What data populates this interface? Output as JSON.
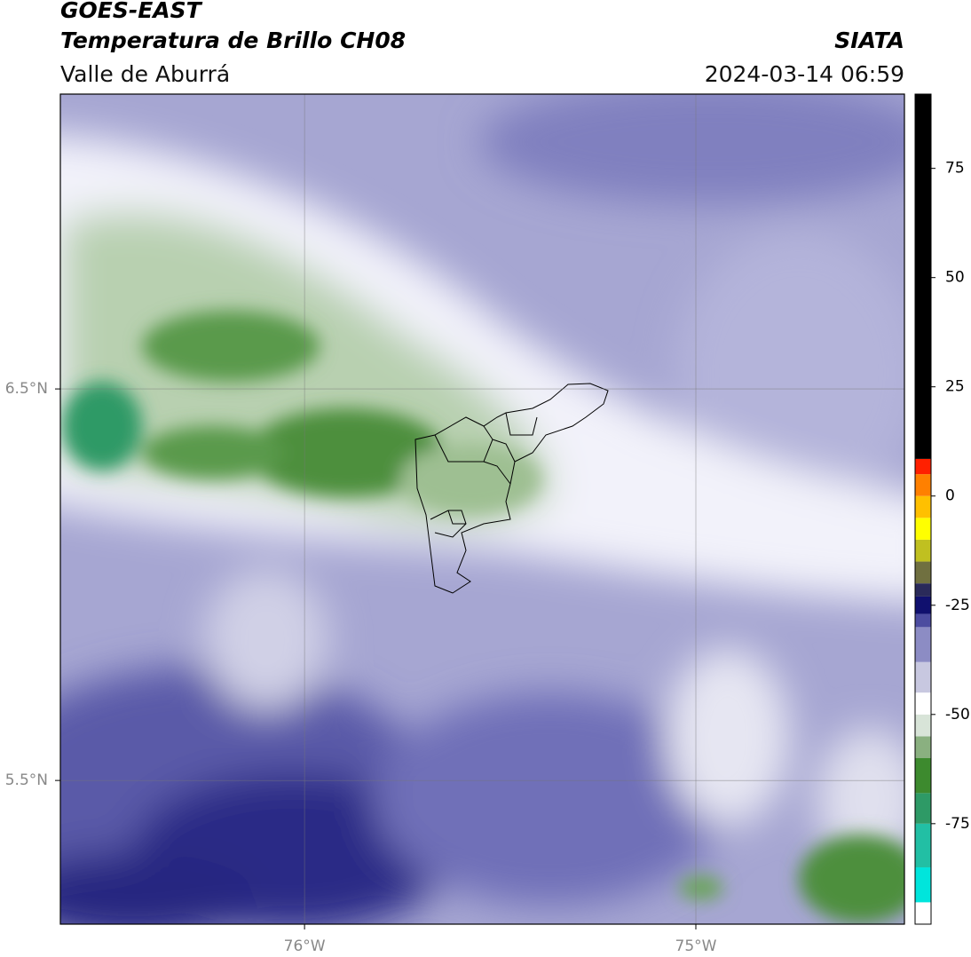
{
  "header": {
    "satellite": "GOES-EAST",
    "product": "Temperatura de Brillo CH08",
    "region": "Valle de Aburrá",
    "source": "SIATA",
    "datetime": "2024-03-14 06:59"
  },
  "map": {
    "xlim": [
      -76.624,
      -74.467
    ],
    "ylim": [
      5.133,
      7.253
    ],
    "xticks": [
      {
        "value": -76,
        "label": "76°W"
      },
      {
        "value": -75,
        "label": "75°W"
      }
    ],
    "yticks": [
      {
        "value": 6.5,
        "label": "6.5°N"
      },
      {
        "value": 5.5,
        "label": "5.5°N"
      }
    ],
    "grid": true
  },
  "colorbar": {
    "lim": [
      -98,
      92
    ],
    "ticks": [
      75,
      50,
      25,
      0,
      -25,
      -50,
      -75
    ],
    "colors": [
      {
        "value": -98,
        "color": "#ffffff"
      },
      {
        "value": -93,
        "color": "#00e5dc"
      },
      {
        "value": -85,
        "color": "#22bfa4"
      },
      {
        "value": -75,
        "color": "#2e9a66"
      },
      {
        "value": -68,
        "color": "#3d8a2e"
      },
      {
        "value": -60,
        "color": "#8ab080"
      },
      {
        "value": -55,
        "color": "#d8e4d8"
      },
      {
        "value": -50,
        "color": "#ffffff"
      },
      {
        "value": -45,
        "color": "#c8c8e0"
      },
      {
        "value": -38,
        "color": "#8c8cc4"
      },
      {
        "value": -30,
        "color": "#4c4ca0"
      },
      {
        "value": -27,
        "color": "#10106e"
      },
      {
        "value": -23,
        "color": "#2a2a5a"
      },
      {
        "value": -20,
        "color": "#707040"
      },
      {
        "value": -15,
        "color": "#c0c020"
      },
      {
        "value": -10,
        "color": "#ffff00"
      },
      {
        "value": -5,
        "color": "#ffc000"
      },
      {
        "value": 0,
        "color": "#ff8000"
      },
      {
        "value": 5,
        "color": "#ff2000"
      },
      {
        "value": 8.5,
        "color": "#000000"
      }
    ]
  }
}
